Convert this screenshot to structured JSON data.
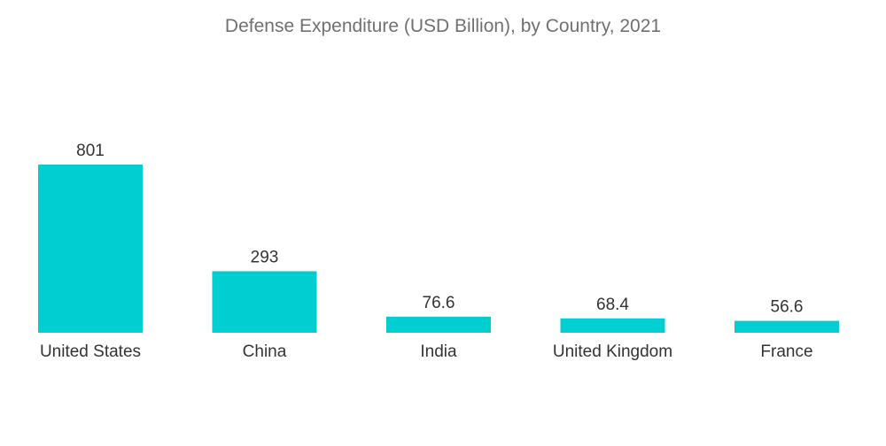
{
  "chart_data": {
    "type": "bar",
    "title": "Defense Expenditure (USD Billion), by Country, 2021",
    "categories": [
      "United States",
      "China",
      "India",
      "United Kingdom",
      "France"
    ],
    "values": [
      801,
      293,
      76.6,
      68.4,
      56.6
    ],
    "value_labels": [
      "801",
      "293",
      "76.6",
      "68.4",
      "56.6"
    ],
    "xlabel": "",
    "ylabel": "",
    "ylim": [
      0,
      801
    ],
    "grid": false,
    "legend": "none",
    "bar_color": "#00CED1"
  }
}
